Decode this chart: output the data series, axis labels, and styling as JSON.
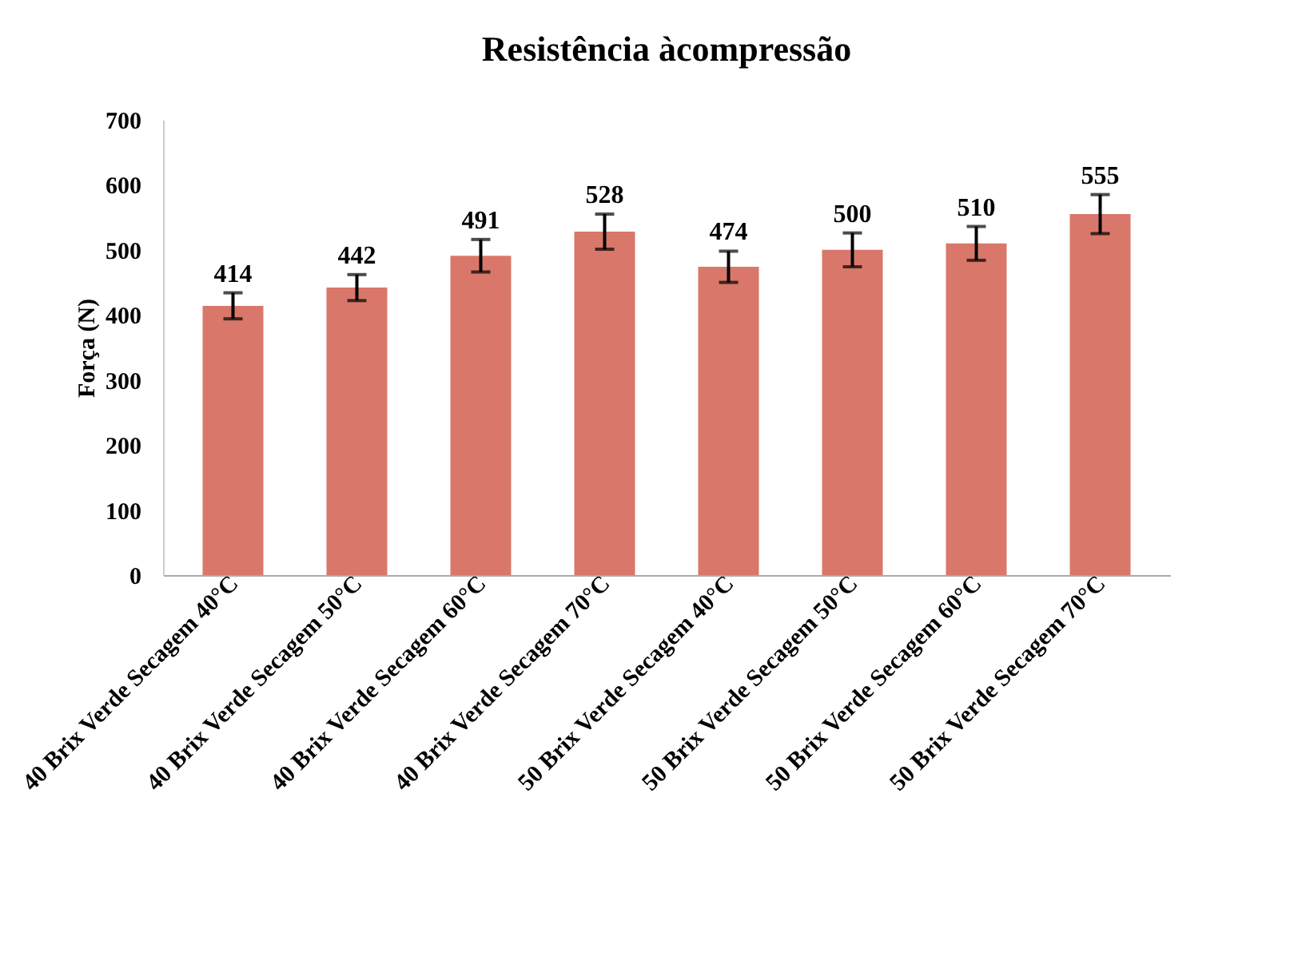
{
  "chart_data": {
    "type": "bar",
    "title": "Resistência àcompressão",
    "ylabel": "Força (N)",
    "categories": [
      "40 Brix Verde Secagem 40°C",
      "40 Brix Verde Secagem 50°C",
      "40 Brix Verde Secagem 60°C",
      "40 Brix Verde Secagem 70°C",
      "50 Brix Verde Secagem 40°C",
      "50 Brix Verde Secagem 50°C",
      "50 Brix Verde Secagem 60°C",
      "50 Brix Verde Secagem 70°C"
    ],
    "values": [
      414,
      442,
      491,
      528,
      474,
      500,
      510,
      555
    ],
    "errors": [
      20,
      20,
      25,
      27,
      24,
      26,
      26,
      30
    ],
    "color": "#d9786a",
    "data_labels": true,
    "ylim": [
      0,
      700
    ],
    "yticks": [
      0,
      100,
      200,
      300,
      400,
      500,
      600,
      700
    ],
    "grid": false
  }
}
